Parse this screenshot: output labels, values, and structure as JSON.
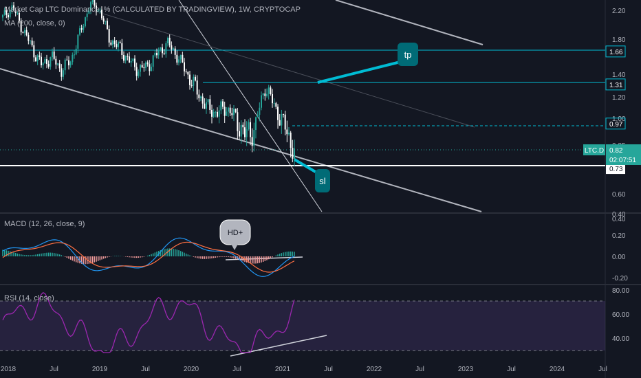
{
  "main_pane": {
    "title": "Market Cap LTC Dominance, % (CALCULATED BY TRADINGVIEW), 1W, CRYPTOCAP",
    "ma_label": "MA (200, close, 0)"
  },
  "chart_data": [
    {
      "type": "candlestick",
      "symbol": "LTC.D",
      "timeframe": "1W",
      "y_ticks": [
        "2.20",
        "1.80",
        "1.40",
        "1.20",
        "1.00",
        "0.85",
        "0.60",
        "0.40"
      ],
      "ylim": [
        0.4,
        2.4
      ],
      "x_ticks": [
        "2018",
        "Jul",
        "2019",
        "Jul",
        "2020",
        "Jul",
        "2021",
        "Jul",
        "2022",
        "Jul",
        "2023",
        "Jul",
        "2024",
        "Jul"
      ],
      "series": [
        {
          "values": [
            2.1,
            2.25,
            1.95,
            1.7,
            1.5,
            1.6,
            1.45,
            1.55,
            1.9,
            2.3,
            2.2,
            1.8,
            1.7,
            1.55,
            1.45,
            1.5,
            1.65,
            1.75,
            1.6,
            1.4,
            1.25,
            1.1,
            1.05,
            1.1,
            1.0,
            0.9,
            0.95,
            1.3,
            1.1,
            0.95,
            0.82
          ]
        }
      ],
      "levels": [
        {
          "label": "1.66",
          "value": 1.66
        },
        {
          "label": "1.31",
          "value": 1.31
        },
        {
          "label": "0.97",
          "value": 0.97
        },
        {
          "label": "0.82",
          "value": 0.82
        },
        {
          "label": "0.73",
          "value": 0.73
        }
      ],
      "last_price_badge": {
        "symbol": "LTC.D",
        "value": "0.82",
        "countdown": "02:07:51"
      },
      "annotations": [
        {
          "text": "tp"
        },
        {
          "text": "sl"
        }
      ]
    },
    {
      "type": "histogram",
      "label": "MACD (12, 26, close, 9)",
      "y_ticks": [
        "0.40",
        "0.20",
        "0.00",
        "-0.20"
      ],
      "ylim": [
        -0.25,
        0.4
      ],
      "annotation": "HD+"
    },
    {
      "type": "line",
      "label": "RSI (14, close)",
      "y_ticks": [
        "80.00",
        "60.00",
        "40.00"
      ],
      "ylim": [
        20,
        85
      ],
      "bands": [
        30,
        70
      ]
    }
  ],
  "colors": {
    "background": "#131722",
    "up": "#26a69a",
    "down": "#ffffff",
    "cyan": "#00bcd4",
    "rsi": "#9c27b0",
    "trendline": "#b2b5be"
  }
}
